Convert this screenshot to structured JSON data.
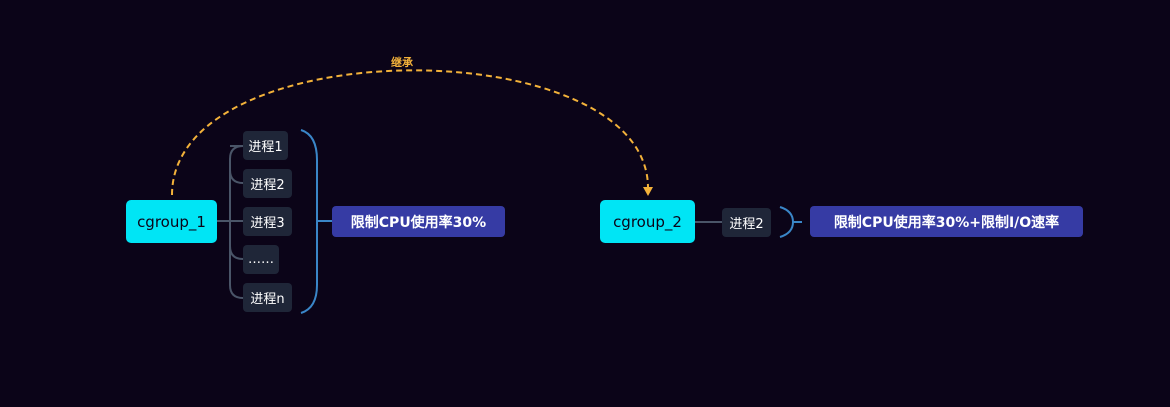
{
  "groups": [
    {
      "name": "cgroup_1",
      "processes": [
        "进程1",
        "进程2",
        "进程3",
        "……",
        "进程n"
      ],
      "limit": "限制CPU使用率30%"
    },
    {
      "name": "cgroup_2",
      "processes": [
        "进程2"
      ],
      "limit": "限制CPU使用率30%+限制I/O速率"
    }
  ],
  "inherit_label": "继承",
  "colors": {
    "background": "#0b0418",
    "root_node": "#00e5f5",
    "process_node": "#1f2638",
    "summary_node": "#363ba4",
    "connector": "#4a5568",
    "brace": "#3a86c8",
    "inherit_arrow": "#f3b23a"
  }
}
